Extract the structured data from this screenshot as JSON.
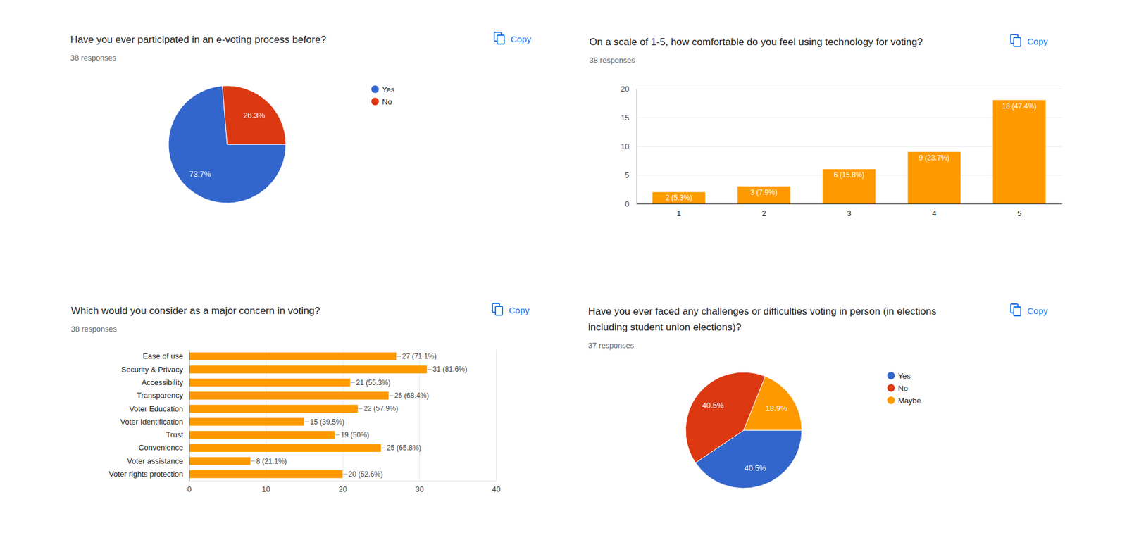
{
  "chart_data": [
    {
      "type": "pie",
      "title": "Have you ever participated in an e-voting process before?",
      "subtitle": "38 responses",
      "annotations": [
        "Copy"
      ],
      "categories": [
        "Yes",
        "No"
      ],
      "values": [
        73.7,
        26.3
      ],
      "value_labels": [
        "73.7%",
        "26.3%"
      ],
      "colors": [
        "#3366cc",
        "#dc3912"
      ],
      "data_labels": true,
      "legend": "right"
    },
    {
      "type": "bar",
      "title": "On a scale of 1-5, how comfortable do you feel using technology for voting?",
      "subtitle": "38 responses",
      "annotations": [
        "Copy"
      ],
      "categories": [
        "1",
        "2",
        "3",
        "4",
        "5"
      ],
      "values": [
        2,
        3,
        6,
        9,
        18
      ],
      "value_labels": [
        "2 (5.3%)",
        "3 (7.9%)",
        "6 (15.8%)",
        "9 (23.7%)",
        "18 (47.4%)"
      ],
      "color": "#ff9900",
      "ylim": [
        0,
        20
      ],
      "yticks": [
        0,
        5,
        10,
        15,
        20
      ],
      "grid": true,
      "data_labels": true
    },
    {
      "type": "bar",
      "orientation": "horizontal",
      "title": "Which would you consider as a major concern in voting?",
      "subtitle": "38 responses",
      "annotations": [
        "Copy"
      ],
      "categories": [
        "Ease of use",
        "Security & Privacy",
        "Accessibility",
        "Transparency",
        "Voter Education",
        "Voter Identification",
        "Trust",
        "Convenience",
        "Voter assistance",
        "Voter rights protection"
      ],
      "values": [
        27,
        31,
        21,
        26,
        22,
        15,
        19,
        25,
        8,
        20
      ],
      "value_labels": [
        "27 (71.1%)",
        "31 (81.6%)",
        "21 (55.3%)",
        "26 (68.4%)",
        "22 (57.9%)",
        "15 (39.5%)",
        "19 (50%)",
        "25 (65.8%)",
        "8 (21.1%)",
        "20 (52.6%)"
      ],
      "color": "#ff9900",
      "xlim": [
        0,
        40
      ],
      "xticks": [
        0,
        10,
        20,
        30,
        40
      ],
      "grid": true,
      "data_labels": true
    },
    {
      "type": "pie",
      "title": "Have you ever faced any challenges or difficulties voting in person (in elections including student union elections)?",
      "subtitle": "37 responses",
      "annotations": [
        "Copy"
      ],
      "categories": [
        "Yes",
        "No",
        "Maybe"
      ],
      "values": [
        40.5,
        40.5,
        18.9
      ],
      "value_labels": [
        "40.5%",
        "40.5%",
        "18.9%"
      ],
      "colors": [
        "#3366cc",
        "#dc3912",
        "#ff9900"
      ],
      "data_labels": true,
      "legend": "right"
    }
  ]
}
